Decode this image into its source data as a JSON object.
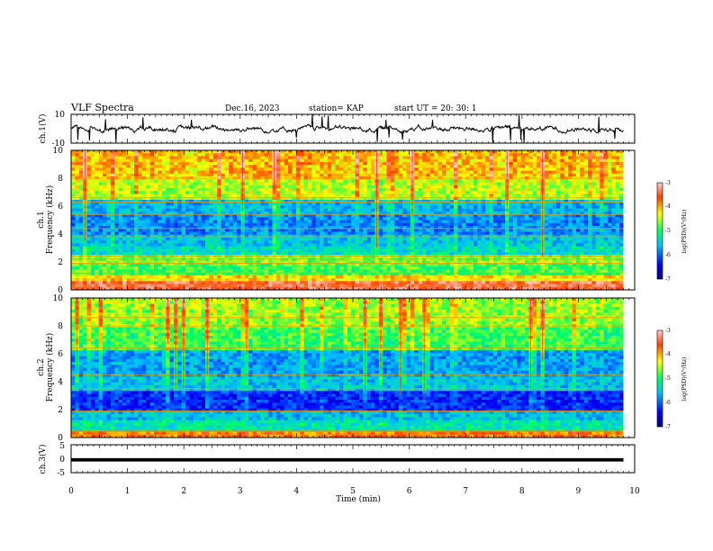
{
  "header": {
    "title": "VLF Spectra",
    "date": "Dec.16, 2023",
    "station": "station= KAP",
    "start": "start  UT  =   20: 30: 1"
  },
  "chart_data": [
    {
      "type": "line",
      "panel": "waveform-ch1",
      "ylabel": "ch.1(V)",
      "ylim": [
        -10,
        10
      ],
      "ytick_labels": [
        "10",
        "-10"
      ],
      "xlim": [
        0,
        10
      ],
      "data_extent_min": 9.8,
      "series": [
        {
          "color": "#000000",
          "typical_range": [
            -3,
            3
          ]
        }
      ]
    },
    {
      "type": "heatmap",
      "panel": "spectrogram-ch1",
      "ylabel": "ch.1",
      "ylabel2": "Frequency (kHz)",
      "ylim": [
        0,
        10
      ],
      "ytick_labels": [
        "0",
        "2",
        "4",
        "6",
        "8",
        "10"
      ],
      "xlim": [
        0,
        10
      ],
      "colorbar": {
        "label": "log(PSD)(V²/Hz)",
        "range": [
          -7,
          -3
        ],
        "tick_labels": [
          "-3",
          "-4",
          "-5",
          "-6",
          "-7"
        ]
      },
      "bands_khz": [
        {
          "range": [
            0,
            0.6
          ],
          "level": -3.4
        },
        {
          "range": [
            0.6,
            1.0
          ],
          "level": -4.2
        },
        {
          "range": [
            1.0,
            1.8
          ],
          "level": -4.9
        },
        {
          "range": [
            1.8,
            2.4
          ],
          "level": -4.7
        },
        {
          "range": [
            2.4,
            3.2
          ],
          "level": -5.4
        },
        {
          "range": [
            3.2,
            4.0
          ],
          "level": -5.6
        },
        {
          "range": [
            4.0,
            5.5
          ],
          "level": -5.9
        },
        {
          "range": [
            5.5,
            6.5
          ],
          "level": -5.7
        },
        {
          "range": [
            6.5,
            8.0
          ],
          "level": -4.6
        },
        {
          "range": [
            8.0,
            10.0
          ],
          "level": -4.2
        }
      ],
      "lines_khz": [
        0.3,
        1.2,
        1.9,
        2.2,
        2.4,
        3.8,
        4.4,
        5.4,
        6.3,
        6.6,
        8.0
      ]
    },
    {
      "type": "heatmap",
      "panel": "spectrogram-ch2",
      "ylabel": "ch.2",
      "ylabel2": "Frequency (kHz)",
      "ylim": [
        0,
        10
      ],
      "ytick_labels": [
        "0",
        "2",
        "4",
        "6",
        "8",
        "10"
      ],
      "xlim": [
        0,
        10
      ],
      "colorbar": {
        "label": "log(PSD)(V²/Hz)",
        "range": [
          -7,
          -3
        ],
        "tick_labels": [
          "-3",
          "-4",
          "-5",
          "-6",
          "-7"
        ]
      },
      "bands_khz": [
        {
          "range": [
            0,
            0.4
          ],
          "level": -3.8
        },
        {
          "range": [
            0.4,
            1.2
          ],
          "level": -5.3
        },
        {
          "range": [
            1.2,
            1.9
          ],
          "level": -5.6
        },
        {
          "range": [
            1.9,
            3.4
          ],
          "level": -6.3
        },
        {
          "range": [
            3.4,
            4.4
          ],
          "level": -5.6
        },
        {
          "range": [
            4.4,
            6.2
          ],
          "level": -5.8
        },
        {
          "range": [
            6.2,
            8.0
          ],
          "level": -5.0
        },
        {
          "range": [
            8.0,
            10.0
          ],
          "level": -4.7
        }
      ],
      "lines_khz": [
        0.5,
        1.9,
        3.5,
        4.5,
        6.4,
        8.0,
        8.6
      ]
    },
    {
      "type": "line",
      "panel": "waveform-ch3",
      "ylabel": "ch.3(V)",
      "ylim": [
        -5,
        5
      ],
      "ytick_labels": [
        "5",
        "0",
        "-5"
      ],
      "xlim": [
        0,
        10
      ],
      "data_extent_min": 9.8,
      "series": [
        {
          "color": "#000000",
          "band": [
            -1.0,
            0.2
          ]
        }
      ],
      "xlabel": "Time (min)",
      "xtick_labels": [
        "0",
        "1",
        "2",
        "3",
        "4",
        "5",
        "6",
        "7",
        "8",
        "9",
        "10"
      ]
    }
  ]
}
